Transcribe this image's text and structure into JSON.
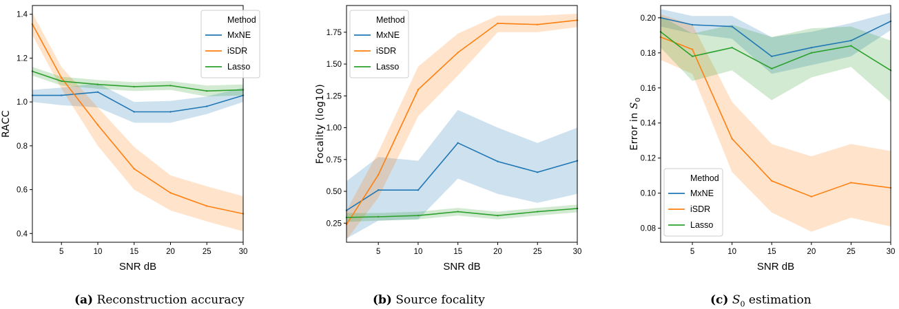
{
  "chart_data": [
    {
      "type": "line",
      "panel_label": "(a)",
      "caption": "Reconstruction accuracy",
      "xlabel": "SNR dB",
      "ylabel": "RACC",
      "xlim": [
        1,
        30
      ],
      "ylim": [
        0.36,
        1.44
      ],
      "xticks": [
        5,
        10,
        15,
        20,
        25,
        30
      ],
      "xtick_labels": [
        "5",
        "10",
        "15",
        "20",
        "25",
        "30"
      ],
      "yticks": [
        0.4,
        0.6,
        0.8,
        1.0,
        1.2,
        1.4
      ],
      "ytick_labels": [
        "0.4",
        "0.6",
        "0.8",
        "1.0",
        "1.2",
        "1.4"
      ],
      "legend": {
        "title": "Method",
        "placement": "top-right"
      },
      "x": [
        1,
        5,
        10,
        15,
        20,
        25,
        30
      ],
      "series": [
        {
          "name": "MxNE",
          "color": "#1f77b4",
          "values": [
            1.03,
            1.03,
            1.045,
            0.955,
            0.955,
            0.98,
            1.03
          ],
          "lower": [
            1.0,
            0.985,
            0.975,
            0.905,
            0.905,
            0.945,
            1.0
          ],
          "upper": [
            1.055,
            1.065,
            1.085,
            1.0,
            1.005,
            1.025,
            1.065
          ]
        },
        {
          "name": "iSDR",
          "color": "#ff7f0e",
          "values": [
            1.355,
            1.11,
            0.895,
            0.695,
            0.585,
            0.525,
            0.49
          ],
          "lower": [
            1.305,
            1.06,
            0.8,
            0.6,
            0.505,
            0.455,
            0.41
          ],
          "upper": [
            1.405,
            1.16,
            0.975,
            0.795,
            0.665,
            0.615,
            0.57
          ]
        },
        {
          "name": "Lasso",
          "color": "#2ca02c",
          "values": [
            1.14,
            1.095,
            1.08,
            1.07,
            1.075,
            1.05,
            1.055
          ],
          "lower": [
            1.12,
            1.075,
            1.06,
            1.05,
            1.055,
            1.025,
            1.03
          ],
          "upper": [
            1.16,
            1.115,
            1.1,
            1.09,
            1.095,
            1.075,
            1.08
          ]
        }
      ]
    },
    {
      "type": "line",
      "panel_label": "(b)",
      "caption": "Source focality",
      "xlabel": "SNR dB",
      "ylabel": "Focality (log10)",
      "xlim": [
        1,
        30
      ],
      "ylim": [
        0.1,
        1.96
      ],
      "xticks": [
        5,
        10,
        15,
        20,
        25,
        30
      ],
      "xtick_labels": [
        "5",
        "10",
        "15",
        "20",
        "25",
        "30"
      ],
      "yticks": [
        0.25,
        0.5,
        0.75,
        1.0,
        1.25,
        1.5,
        1.75
      ],
      "ytick_labels": [
        "0.25",
        "0.50",
        "0.75",
        "1.00",
        "1.25",
        "1.50",
        "1.75"
      ],
      "legend": {
        "title": "Method",
        "placement": "top-left"
      },
      "x": [
        1,
        5,
        10,
        15,
        20,
        25,
        30
      ],
      "series": [
        {
          "name": "MxNE",
          "color": "#1f77b4",
          "values": [
            0.35,
            0.51,
            0.51,
            0.88,
            0.735,
            0.65,
            0.74
          ],
          "lower": [
            0.13,
            0.27,
            0.28,
            0.6,
            0.48,
            0.41,
            0.48
          ],
          "upper": [
            0.58,
            0.77,
            0.74,
            1.14,
            1.0,
            0.88,
            1.0
          ]
        },
        {
          "name": "iSDR",
          "color": "#ff7f0e",
          "values": [
            0.24,
            0.63,
            1.3,
            1.59,
            1.82,
            1.81,
            1.845
          ],
          "lower": [
            0.12,
            0.45,
            1.09,
            1.41,
            1.75,
            1.75,
            1.79
          ],
          "upper": [
            0.35,
            0.81,
            1.48,
            1.74,
            1.88,
            1.88,
            1.895
          ]
        },
        {
          "name": "Lasso",
          "color": "#2ca02c",
          "values": [
            0.295,
            0.3,
            0.31,
            0.34,
            0.31,
            0.34,
            0.365
          ],
          "lower": [
            0.26,
            0.27,
            0.28,
            0.31,
            0.28,
            0.31,
            0.335
          ],
          "upper": [
            0.33,
            0.33,
            0.34,
            0.37,
            0.34,
            0.37,
            0.395
          ]
        }
      ]
    },
    {
      "type": "line",
      "panel_label": "(c)",
      "caption_symbol": "S",
      "caption_subscript": "0",
      "caption": "estimation",
      "xlabel": "SNR dB",
      "ylabel_prefix": "Error in ",
      "ylabel_symbol": "S",
      "ylabel_subscript": "0",
      "xlim": [
        1,
        30
      ],
      "ylim": [
        0.072,
        0.207
      ],
      "xticks": [
        5,
        10,
        15,
        20,
        25,
        30
      ],
      "xtick_labels": [
        "5",
        "10",
        "15",
        "20",
        "25",
        "30"
      ],
      "yticks": [
        0.08,
        0.1,
        0.12,
        0.14,
        0.16,
        0.18,
        0.2
      ],
      "ytick_labels": [
        "0.08",
        "0.10",
        "0.12",
        "0.14",
        "0.16",
        "0.18",
        "0.20"
      ],
      "legend": {
        "title": "Method",
        "placement": "bottom-left"
      },
      "x": [
        1,
        5,
        10,
        15,
        20,
        25,
        30
      ],
      "series": [
        {
          "name": "MxNE",
          "color": "#1f77b4",
          "values": [
            0.2,
            0.196,
            0.195,
            0.178,
            0.183,
            0.187,
            0.198
          ],
          "lower": [
            0.195,
            0.191,
            0.188,
            0.168,
            0.173,
            0.178,
            0.193
          ],
          "upper": [
            0.205,
            0.201,
            0.201,
            0.189,
            0.192,
            0.197,
            0.203
          ]
        },
        {
          "name": "iSDR",
          "color": "#ff7f0e",
          "values": [
            0.189,
            0.182,
            0.131,
            0.107,
            0.098,
            0.106,
            0.103
          ],
          "lower": [
            0.176,
            0.168,
            0.112,
            0.089,
            0.078,
            0.086,
            0.081
          ],
          "upper": [
            0.202,
            0.196,
            0.152,
            0.128,
            0.121,
            0.128,
            0.124
          ]
        },
        {
          "name": "Lasso",
          "color": "#2ca02c",
          "values": [
            0.192,
            0.178,
            0.183,
            0.171,
            0.18,
            0.184,
            0.17
          ],
          "lower": [
            0.183,
            0.164,
            0.17,
            0.153,
            0.166,
            0.172,
            0.152
          ],
          "upper": [
            0.201,
            0.191,
            0.196,
            0.189,
            0.194,
            0.195,
            0.187
          ]
        }
      ]
    }
  ]
}
